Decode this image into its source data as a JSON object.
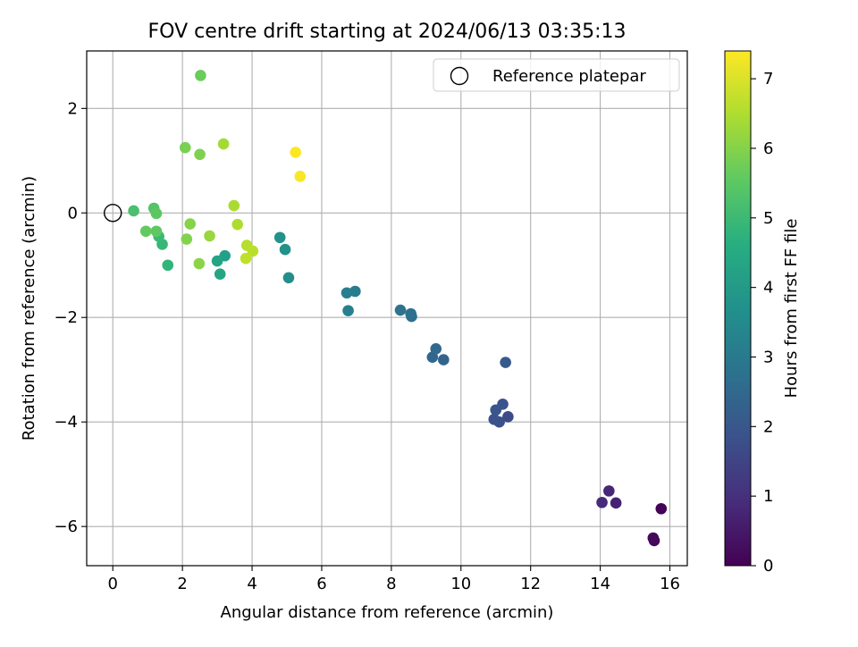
{
  "chart_data": {
    "type": "scatter",
    "title": "FOV centre drift starting at 2024/06/13 03:35:13",
    "xlabel": "Angular distance from reference (arcmin)",
    "ylabel": "Rotation from reference (arcmin)",
    "xlim": [
      -0.75,
      16.5
    ],
    "ylim": [
      -6.75,
      3.1
    ],
    "x_ticks": [
      0,
      2,
      4,
      6,
      8,
      10,
      12,
      14,
      16
    ],
    "x_tick_labels": [
      "0",
      "2",
      "4",
      "6",
      "8",
      "10",
      "12",
      "14",
      "16"
    ],
    "y_ticks": [
      -6,
      -4,
      -2,
      0,
      2
    ],
    "y_tick_labels": [
      "−6",
      "−4",
      "−2",
      "0",
      "2"
    ],
    "grid": true,
    "legend": {
      "placement": "upper-right",
      "entries": [
        {
          "label": "Reference platepar",
          "marker": "hollow-circle"
        }
      ]
    },
    "reference_point": {
      "x": 0,
      "y": 0
    },
    "colorbar": {
      "label": "Hours from first FF file",
      "colormap": "viridis",
      "range": [
        0,
        7.4
      ],
      "ticks": [
        0,
        1,
        2,
        3,
        4,
        5,
        6,
        7
      ],
      "tick_labels": [
        "0",
        "1",
        "2",
        "3",
        "4",
        "5",
        "6",
        "7"
      ]
    },
    "points": [
      {
        "x": 15.75,
        "y": -5.66,
        "c": 0.05
      },
      {
        "x": 15.55,
        "y": -6.27,
        "c": 0.1
      },
      {
        "x": 15.52,
        "y": -6.22,
        "c": 0.15
      },
      {
        "x": 14.45,
        "y": -5.55,
        "c": 0.7
      },
      {
        "x": 14.25,
        "y": -5.32,
        "c": 0.8
      },
      {
        "x": 14.05,
        "y": -5.54,
        "c": 0.9
      },
      {
        "x": 11.35,
        "y": -3.9,
        "c": 1.7
      },
      {
        "x": 11.1,
        "y": -4.0,
        "c": 1.8
      },
      {
        "x": 10.95,
        "y": -3.95,
        "c": 1.85
      },
      {
        "x": 11.2,
        "y": -3.66,
        "c": 1.9
      },
      {
        "x": 11.0,
        "y": -3.77,
        "c": 1.95
      },
      {
        "x": 11.28,
        "y": -2.86,
        "c": 2.05
      },
      {
        "x": 9.5,
        "y": -2.81,
        "c": 2.35
      },
      {
        "x": 9.18,
        "y": -2.76,
        "c": 2.45
      },
      {
        "x": 9.28,
        "y": -2.6,
        "c": 2.5
      },
      {
        "x": 8.58,
        "y": -1.98,
        "c": 2.7
      },
      {
        "x": 8.56,
        "y": -1.93,
        "c": 2.75
      },
      {
        "x": 8.26,
        "y": -1.86,
        "c": 2.8
      },
      {
        "x": 6.96,
        "y": -1.5,
        "c": 3.1
      },
      {
        "x": 6.72,
        "y": -1.53,
        "c": 3.15
      },
      {
        "x": 6.76,
        "y": -1.87,
        "c": 3.2
      },
      {
        "x": 5.05,
        "y": -1.24,
        "c": 3.65
      },
      {
        "x": 4.95,
        "y": -0.7,
        "c": 3.75
      },
      {
        "x": 4.8,
        "y": -0.47,
        "c": 3.8
      },
      {
        "x": 3.22,
        "y": -0.82,
        "c": 4.2
      },
      {
        "x": 3.0,
        "y": -0.92,
        "c": 4.3
      },
      {
        "x": 3.08,
        "y": -1.17,
        "c": 4.35
      },
      {
        "x": 1.58,
        "y": -1.0,
        "c": 4.85
      },
      {
        "x": 1.42,
        "y": -0.6,
        "c": 4.95
      },
      {
        "x": 1.32,
        "y": -0.45,
        "c": 5.0
      },
      {
        "x": 0.6,
        "y": 0.04,
        "c": 5.25
      },
      {
        "x": 1.18,
        "y": 0.09,
        "c": 5.4
      },
      {
        "x": 1.25,
        "y": -0.01,
        "c": 5.5
      },
      {
        "x": 1.25,
        "y": -0.35,
        "c": 5.55
      },
      {
        "x": 0.95,
        "y": -0.35,
        "c": 5.6
      },
      {
        "x": 2.52,
        "y": 2.63,
        "c": 5.7
      },
      {
        "x": 2.08,
        "y": 1.25,
        "c": 5.9
      },
      {
        "x": 2.5,
        "y": 1.12,
        "c": 5.95
      },
      {
        "x": 2.12,
        "y": -0.5,
        "c": 6.0
      },
      {
        "x": 2.22,
        "y": -0.21,
        "c": 6.05
      },
      {
        "x": 2.48,
        "y": -0.97,
        "c": 6.1
      },
      {
        "x": 2.78,
        "y": -0.44,
        "c": 6.25
      },
      {
        "x": 3.18,
        "y": 1.32,
        "c": 6.4
      },
      {
        "x": 3.48,
        "y": 0.14,
        "c": 6.45
      },
      {
        "x": 3.58,
        "y": -0.22,
        "c": 6.5
      },
      {
        "x": 3.85,
        "y": -0.62,
        "c": 6.6
      },
      {
        "x": 4.02,
        "y": -0.73,
        "c": 6.65
      },
      {
        "x": 3.82,
        "y": -0.87,
        "c": 6.7
      },
      {
        "x": 5.38,
        "y": 0.7,
        "c": 7.35
      },
      {
        "x": 5.25,
        "y": 1.16,
        "c": 7.4
      }
    ]
  }
}
